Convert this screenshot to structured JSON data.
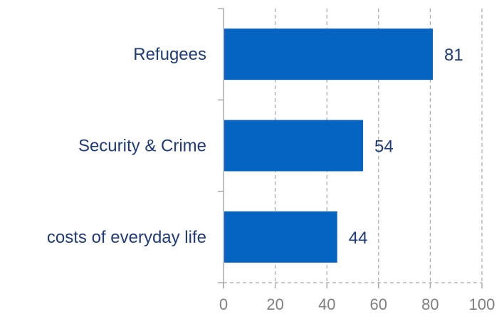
{
  "chart_data": {
    "type": "bar",
    "orientation": "horizontal",
    "categories": [
      "Refugees",
      "Security & Crime",
      "costs of everyday life"
    ],
    "values": [
      81,
      54,
      44
    ],
    "value_labels": [
      "81",
      "54",
      "44"
    ],
    "title": "",
    "xlabel": "",
    "ylabel": "",
    "xlim": [
      0,
      100
    ],
    "xticks": [
      0,
      20,
      40,
      60,
      80,
      100
    ],
    "xtick_labels": [
      "0",
      "20",
      "40",
      "60",
      "80",
      "100"
    ],
    "grid": true,
    "grid_style": "dashed vertical",
    "legend": "none",
    "bar_color": "#0563c1",
    "text_color": "#1f3b7a",
    "axis_color": "#a6a6a6"
  }
}
